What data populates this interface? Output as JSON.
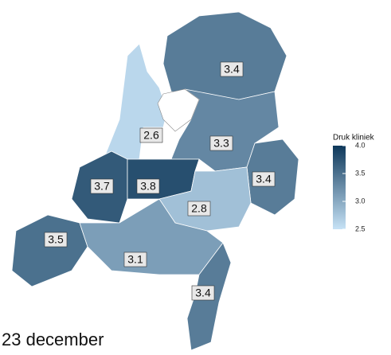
{
  "map": {
    "regions": [
      3.4,
      2.6,
      3.3,
      3.4,
      3.7,
      3.8,
      2.8,
      3.5,
      3.1,
      3.4
    ],
    "legend_title": "Druk kliniek",
    "legend_range": [
      2.5,
      {
        "value": 4,
        "label": "4.0"
      }
    ],
    "legend_ticks": [
      {
        "value": 4,
        "label": "4.0"
      },
      3.5,
      {
        "value": 3,
        "label": "3.0"
      },
      2.5
    ],
    "caption": "23 december"
  }
}
